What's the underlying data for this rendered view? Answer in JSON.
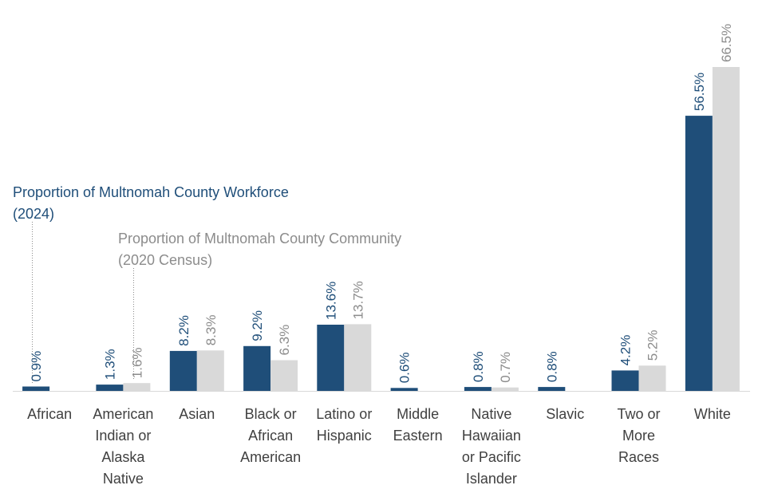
{
  "chart_data": {
    "type": "bar",
    "title": "",
    "xlabel": "",
    "ylabel": "",
    "ylim": [
      0,
      70
    ],
    "grid": false,
    "legend_placement": "left, annotated",
    "categories": [
      [
        "African"
      ],
      [
        "American",
        "Indian or",
        "Alaska",
        "Native"
      ],
      [
        "Asian"
      ],
      [
        "Black or",
        "African",
        "American"
      ],
      [
        "Latino or",
        "Hispanic"
      ],
      [
        "Middle",
        "Eastern"
      ],
      [
        "Native",
        "Hawaiian",
        "or Pacific",
        "Islander"
      ],
      [
        "Slavic"
      ],
      [
        "Two or",
        "More",
        "Races"
      ],
      [
        "White"
      ]
    ],
    "series": [
      {
        "name": "Proportion of Multnomah County Workforce (2024)",
        "color": "#1f4e79",
        "values": [
          0.9,
          1.3,
          8.2,
          9.2,
          13.6,
          0.6,
          0.8,
          0.8,
          4.2,
          56.5
        ],
        "labels": [
          "0.9%",
          "1.3%",
          "8.2%",
          "9.2%",
          "13.6%",
          "0.6%",
          "0.8%",
          "0.8%",
          "4.2%",
          "56.5%"
        ]
      },
      {
        "name": "Proportion of Multnomah County Community (2020 Census)",
        "color": "#d9d9d9",
        "label_color": "#8c8c8c",
        "values": [
          null,
          1.6,
          8.3,
          6.3,
          13.7,
          null,
          0.7,
          null,
          5.2,
          66.5
        ],
        "labels": [
          "",
          "1.6%",
          "8.3%",
          "6.3%",
          "13.7%",
          "",
          "0.7%",
          "",
          "5.2%",
          "66.5%"
        ]
      }
    ]
  },
  "legend": {
    "workforce": [
      "Proportion of Multnomah County Workforce",
      "(2024)"
    ],
    "community": [
      "Proportion of Multnomah County Community",
      "(2020 Census)"
    ]
  }
}
